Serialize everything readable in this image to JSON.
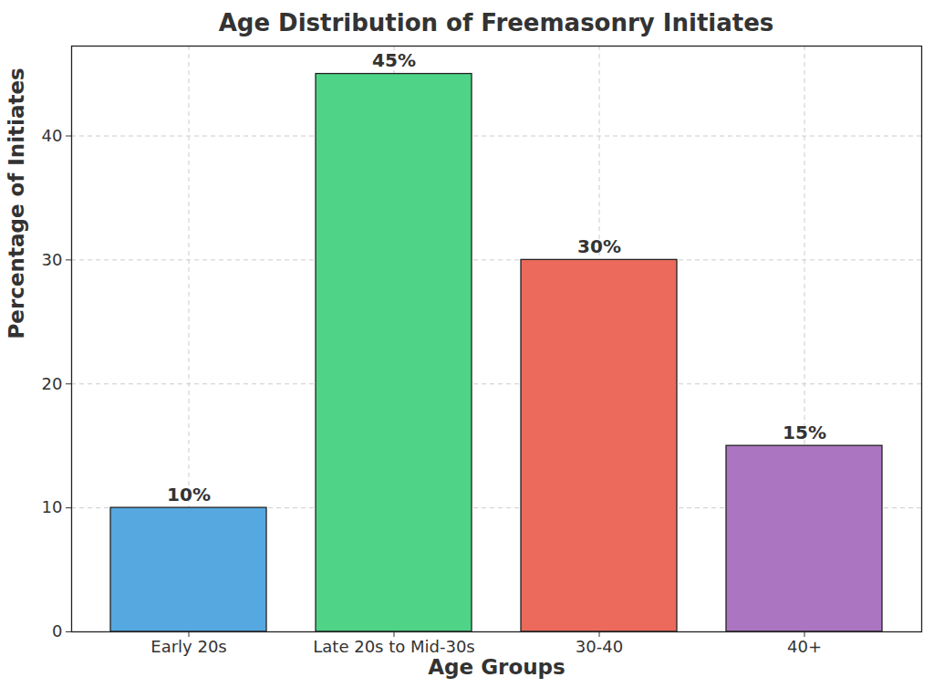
{
  "chart_data": {
    "type": "bar",
    "title": "Age Distribution of Freemasonry Initiates",
    "x_label": "Age Groups",
    "y_label": "Percentage of Initiates",
    "categories": [
      "Early 20s",
      "Late 20s to Mid-30s",
      "30-40",
      "40+"
    ],
    "values": [
      10,
      45,
      30,
      15
    ],
    "value_labels": [
      "10%",
      "45%",
      "30%",
      "15%"
    ],
    "colors": [
      "#56a8e0",
      "#4fd487",
      "#eb6a5c",
      "#ab75c2"
    ],
    "ylim": [
      0,
      47.25
    ],
    "yticks": [
      0,
      10,
      20,
      30,
      40
    ],
    "grid": true,
    "data_labels": true
  }
}
